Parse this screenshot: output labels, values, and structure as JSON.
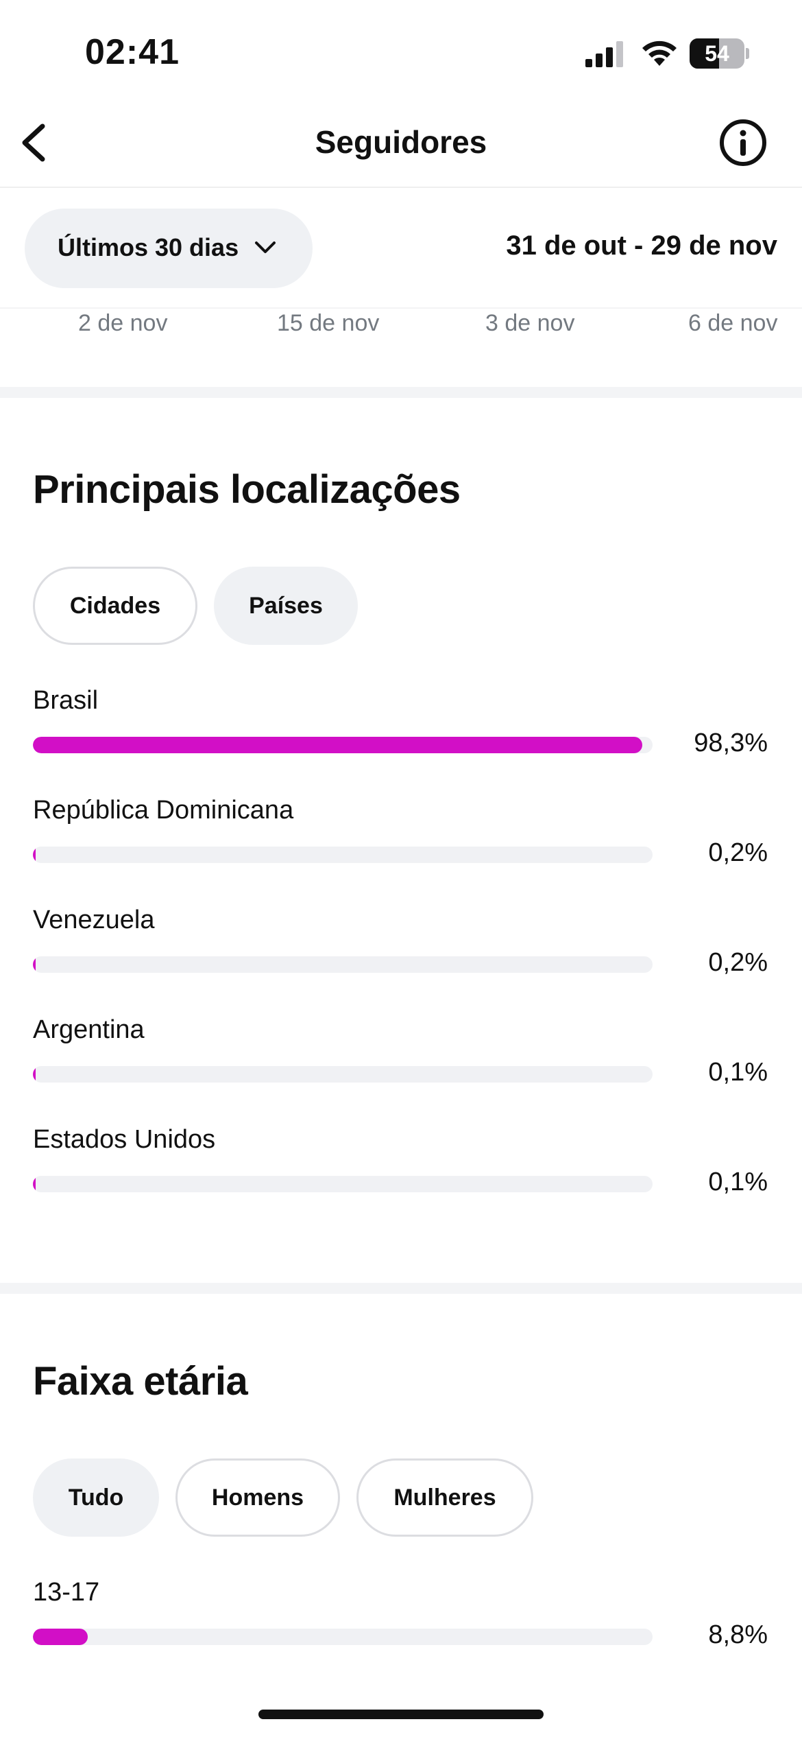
{
  "status_bar": {
    "time": "02:41",
    "battery": "54",
    "battery_level": 0.54
  },
  "header": {
    "title": "Seguidores",
    "back_icon": "chevron-left-icon",
    "info_icon": "info-icon"
  },
  "filter": {
    "period_label": "Últimos 30 dias",
    "date_range": "31 de out - 29 de nov"
  },
  "dates": [
    "2 de nov",
    "15 de nov",
    "3 de nov",
    "6 de nov"
  ],
  "locations": {
    "title": "Principais localizações",
    "tabs": [
      {
        "label": "Cidades",
        "selected": false
      },
      {
        "label": "Países",
        "selected": true
      }
    ],
    "items": [
      {
        "label": "Brasil",
        "value": "98,3%",
        "percent": 98.3
      },
      {
        "label": "República Dominicana",
        "value": "0,2%",
        "percent": 0.2
      },
      {
        "label": "Venezuela",
        "value": "0,2%",
        "percent": 0.2
      },
      {
        "label": "Argentina",
        "value": "0,1%",
        "percent": 0.1
      },
      {
        "label": "Estados Unidos",
        "value": "0,1%",
        "percent": 0.1
      }
    ]
  },
  "age": {
    "title": "Faixa etária",
    "tabs": [
      {
        "label": "Tudo",
        "selected": true
      },
      {
        "label": "Homens",
        "selected": false
      },
      {
        "label": "Mulheres",
        "selected": false
      }
    ],
    "items": [
      {
        "label": "13-17",
        "value": "8,8%",
        "percent": 8.8
      }
    ]
  },
  "colors": {
    "accent": "#d20fc6",
    "track": "#f0f1f4",
    "chip_bg": "#eff1f4"
  }
}
